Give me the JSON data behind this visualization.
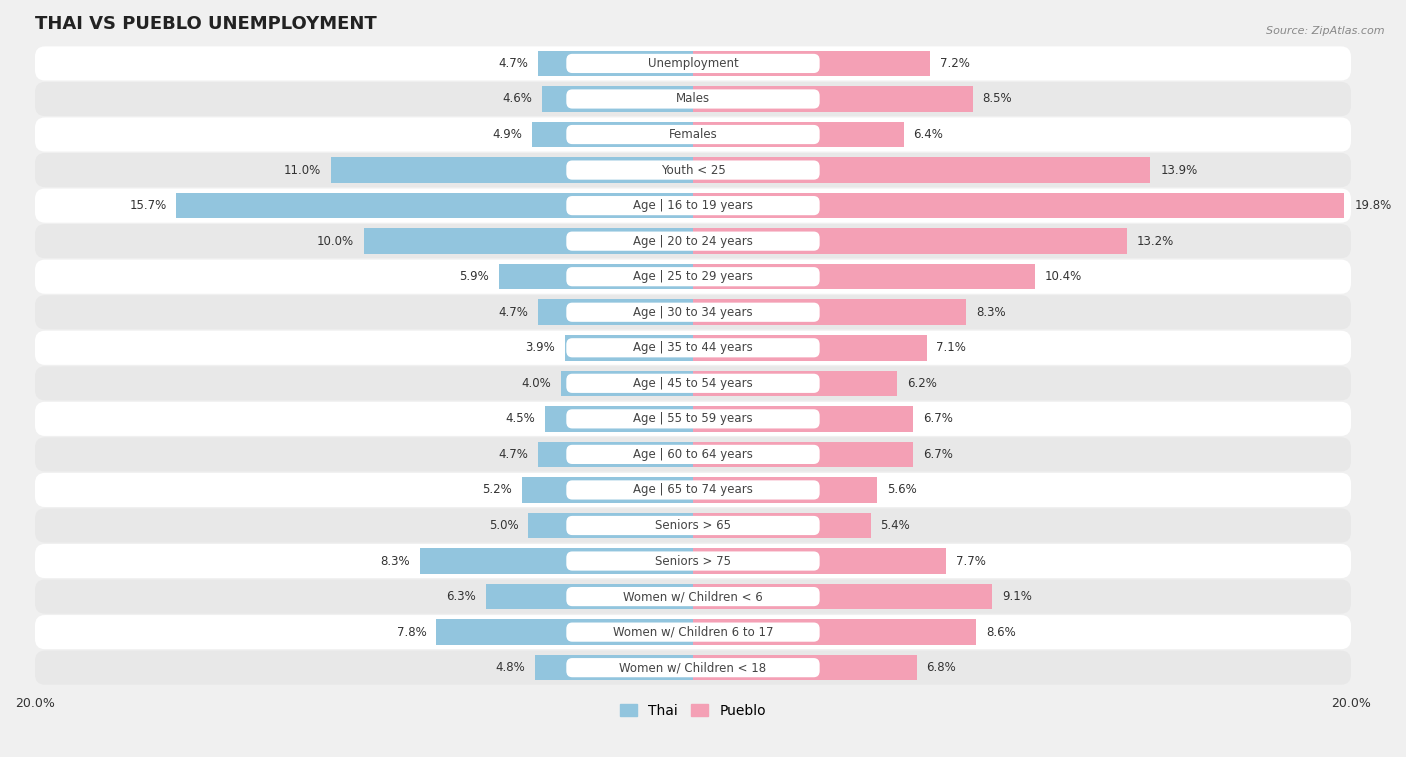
{
  "title": "THAI VS PUEBLO UNEMPLOYMENT",
  "source": "Source: ZipAtlas.com",
  "categories": [
    "Unemployment",
    "Males",
    "Females",
    "Youth < 25",
    "Age | 16 to 19 years",
    "Age | 20 to 24 years",
    "Age | 25 to 29 years",
    "Age | 30 to 34 years",
    "Age | 35 to 44 years",
    "Age | 45 to 54 years",
    "Age | 55 to 59 years",
    "Age | 60 to 64 years",
    "Age | 65 to 74 years",
    "Seniors > 65",
    "Seniors > 75",
    "Women w/ Children < 6",
    "Women w/ Children 6 to 17",
    "Women w/ Children < 18"
  ],
  "thai_values": [
    4.7,
    4.6,
    4.9,
    11.0,
    15.7,
    10.0,
    5.9,
    4.7,
    3.9,
    4.0,
    4.5,
    4.7,
    5.2,
    5.0,
    8.3,
    6.3,
    7.8,
    4.8
  ],
  "pueblo_values": [
    7.2,
    8.5,
    6.4,
    13.9,
    19.8,
    13.2,
    10.4,
    8.3,
    7.1,
    6.2,
    6.7,
    6.7,
    5.6,
    5.4,
    7.7,
    9.1,
    8.6,
    6.8
  ],
  "thai_color": "#92c5de",
  "pueblo_color": "#f4a0b5",
  "thai_label": "Thai",
  "pueblo_label": "Pueblo",
  "axis_max": 20.0,
  "background_color": "#f0f0f0",
  "row_white": "#ffffff",
  "row_gray": "#e8e8e8",
  "title_fontsize": 13,
  "label_fontsize": 9,
  "value_fontsize": 8.5,
  "cat_fontsize": 8.5
}
